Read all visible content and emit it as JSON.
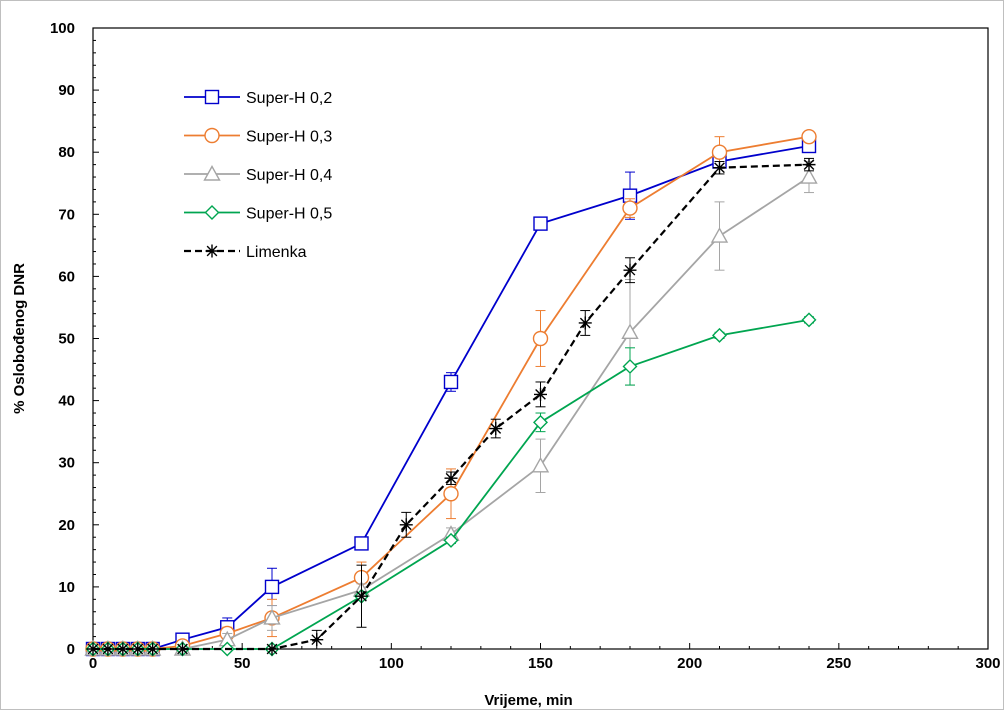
{
  "chart_data": {
    "type": "line",
    "title": "",
    "xlabel": "Vrijeme, min",
    "ylabel": "% Oslobođenog DNR",
    "xlim": [
      0,
      300
    ],
    "ylim": [
      0,
      100
    ],
    "xticks": [
      0,
      50,
      100,
      150,
      200,
      250,
      300
    ],
    "yticks": [
      0,
      10,
      20,
      30,
      40,
      50,
      60,
      70,
      80,
      90,
      100
    ],
    "grid": false,
    "legend_position": "top-left",
    "series": [
      {
        "name": "Super-H 0,2",
        "color": "#0000CC",
        "marker": "square",
        "dashed": false,
        "x": [
          0,
          5,
          10,
          15,
          20,
          30,
          45,
          60,
          90,
          120,
          150,
          180,
          210,
          240
        ],
        "y": [
          0,
          0,
          0,
          0,
          0,
          1.5,
          3.5,
          10,
          17,
          43,
          68.5,
          73,
          78.5,
          81
        ],
        "err": [
          0,
          0,
          0,
          0,
          0,
          0.5,
          1.5,
          3,
          0.5,
          1.5,
          0.5,
          3.8,
          0.5,
          0.5
        ]
      },
      {
        "name": "Super-H 0,3",
        "color": "#ED7D31",
        "marker": "circle",
        "dashed": false,
        "x": [
          0,
          5,
          10,
          15,
          20,
          30,
          45,
          60,
          90,
          120,
          150,
          180,
          210,
          240
        ],
        "y": [
          0,
          0,
          0,
          0,
          0,
          0.5,
          2.5,
          5,
          11.5,
          25,
          50,
          71,
          80,
          82.5
        ],
        "err": [
          0,
          0,
          0,
          0,
          0,
          0.5,
          1,
          3,
          2.5,
          4,
          4.5,
          1.5,
          2.5,
          0.5
        ]
      },
      {
        "name": "Super-H 0,4",
        "color": "#A5A5A5",
        "marker": "triangle",
        "dashed": false,
        "x": [
          0,
          5,
          10,
          15,
          20,
          30,
          45,
          60,
          90,
          120,
          150,
          180,
          210,
          240
        ],
        "y": [
          0,
          0,
          0,
          0,
          0,
          0,
          1.5,
          5,
          9.5,
          18.5,
          29.5,
          51,
          66.5,
          76
        ],
        "err": [
          0,
          0,
          0,
          0,
          0,
          0,
          1,
          2,
          1,
          1,
          4.3,
          8.5,
          5.5,
          2.5
        ]
      },
      {
        "name": "Super-H 0,5",
        "color": "#00A550",
        "marker": "diamond",
        "dashed": false,
        "x": [
          0,
          5,
          10,
          15,
          20,
          30,
          45,
          60,
          90,
          120,
          150,
          180,
          210,
          240
        ],
        "y": [
          0,
          0,
          0,
          0,
          0,
          0,
          0,
          0,
          8.5,
          17.5,
          36.5,
          45.5,
          50.5,
          53
        ],
        "err": [
          0,
          0,
          0,
          0,
          0,
          0,
          0,
          0,
          0.5,
          0.5,
          1.5,
          3,
          0.5,
          0.5
        ]
      },
      {
        "name": "Limenka",
        "color": "#000000",
        "marker": "asterisk",
        "dashed": true,
        "x": [
          0,
          5,
          10,
          15,
          20,
          30,
          60,
          75,
          90,
          105,
          120,
          135,
          150,
          165,
          180,
          210,
          240
        ],
        "y": [
          0,
          0,
          0,
          0,
          0,
          0,
          0,
          1.5,
          8.5,
          20,
          27.5,
          35.5,
          41,
          52.5,
          61,
          77.5,
          78
        ],
        "err": [
          0,
          0,
          0,
          0,
          0,
          0,
          0,
          1.5,
          5,
          2,
          1,
          1.5,
          2,
          2,
          2,
          1,
          1
        ]
      }
    ]
  }
}
